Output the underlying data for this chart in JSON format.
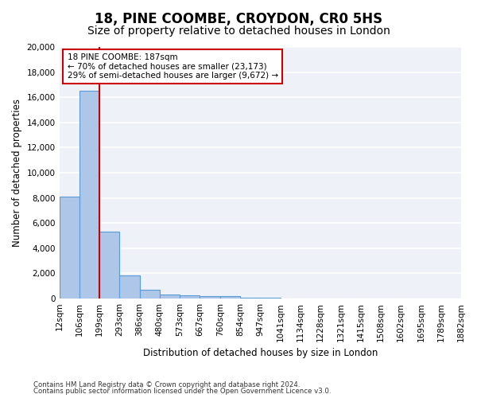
{
  "title": "18, PINE COOMBE, CROYDON, CR0 5HS",
  "subtitle": "Size of property relative to detached houses in London",
  "xlabel": "Distribution of detached houses by size in London",
  "ylabel": "Number of detached properties",
  "footnote1": "Contains HM Land Registry data © Crown copyright and database right 2024.",
  "footnote2": "Contains public sector information licensed under the Open Government Licence v3.0.",
  "tick_labels": [
    "12sqm",
    "106sqm",
    "199sqm",
    "293sqm",
    "386sqm",
    "480sqm",
    "573sqm",
    "667sqm",
    "760sqm",
    "854sqm",
    "947sqm",
    "1041sqm",
    "1134sqm",
    "1228sqm",
    "1321sqm",
    "1415sqm",
    "1508sqm",
    "1602sqm",
    "1695sqm",
    "1789sqm",
    "1882sqm"
  ],
  "values": [
    8100,
    16500,
    5300,
    1850,
    700,
    350,
    280,
    220,
    170,
    90,
    40,
    20,
    10,
    5,
    3,
    2,
    1,
    1,
    0,
    0
  ],
  "bar_color": "#aec6e8",
  "bar_edge_color": "#5b9bd5",
  "vline_position": 1.5,
  "vline_color": "#cc0000",
  "annotation_text": "18 PINE COOMBE: 187sqm\n← 70% of detached houses are smaller (23,173)\n29% of semi-detached houses are larger (9,672) →",
  "annotation_box_color": "#cc0000",
  "ylim": [
    0,
    20000
  ],
  "yticks": [
    0,
    2000,
    4000,
    6000,
    8000,
    10000,
    12000,
    14000,
    16000,
    18000,
    20000
  ],
  "bg_color": "#eef2f8",
  "grid_color": "#ffffff",
  "title_fontsize": 12,
  "subtitle_fontsize": 10,
  "axis_label_fontsize": 8.5,
  "tick_fontsize": 7.5,
  "annotation_fontsize": 7.5
}
